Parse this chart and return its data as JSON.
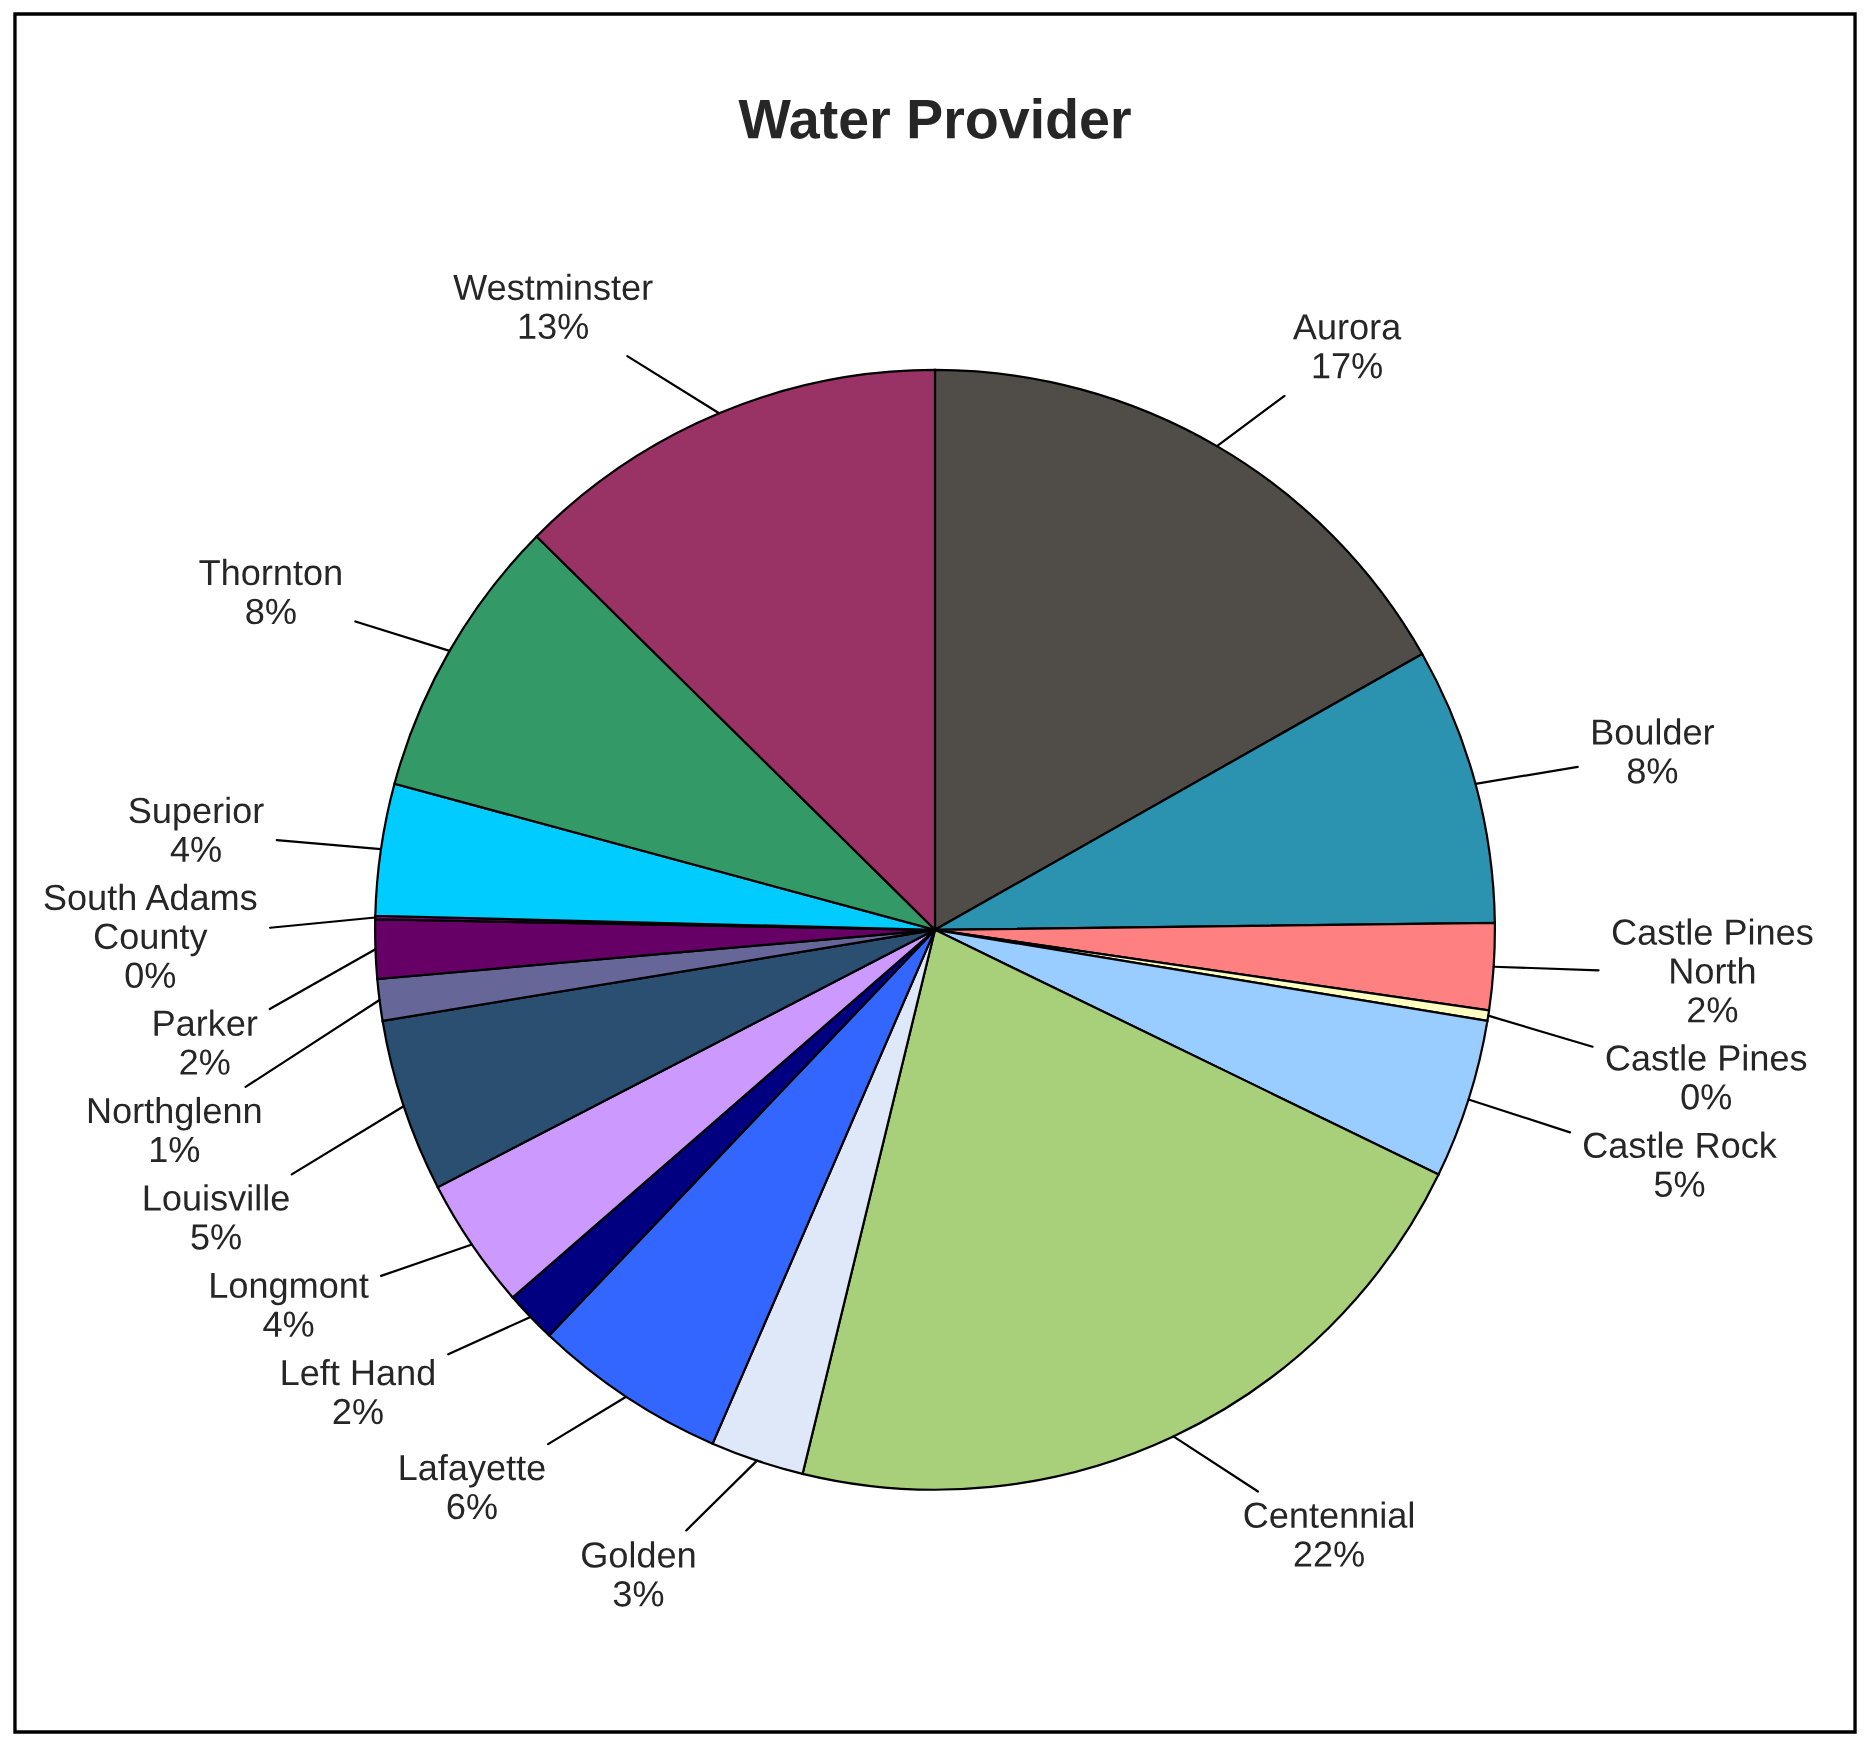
{
  "chart_data": {
    "type": "pie",
    "title": "Water Provider",
    "categories": [
      "Aurora",
      "Boulder",
      "Castle Pines North",
      "Castle Pines",
      "Castle Rock",
      "Centennial",
      "Golden",
      "Lafayette",
      "Left Hand",
      "Longmont",
      "Louisville",
      "Northglenn",
      "Parker",
      "South Adams County",
      "Superior",
      "Thornton",
      "Westminster"
    ],
    "values": [
      16.8,
      8,
      2.5,
      0.3,
      4.6,
      21.6,
      2.7,
      5.6,
      1.5,
      3.8,
      5.0,
      1.2,
      1.7,
      0.1,
      3.8,
      8.2,
      12.6
    ],
    "value_labels": [
      "17%",
      "8%",
      "2%",
      "0%",
      "5%",
      "22%",
      "3%",
      "6%",
      "2%",
      "4%",
      "5%",
      "1%",
      "2%",
      "0%",
      "4%",
      "8%",
      "13%"
    ],
    "colors": [
      "#504d48",
      "#2b92b0",
      "#ff8080",
      "#ffffc0",
      "#99ccff",
      "#a8d07a",
      "#dfe8f8",
      "#3366ff",
      "#000080",
      "#cc99ff",
      "#2b4f70",
      "#666699",
      "#660066",
      "#800080",
      "#00ccff",
      "#339966",
      "#993366"
    ],
    "legend": false
  }
}
